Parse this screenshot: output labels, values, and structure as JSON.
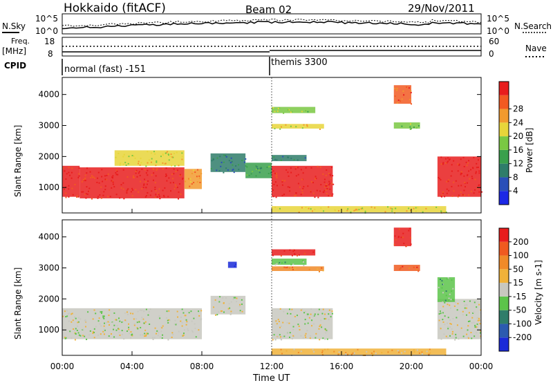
{
  "header": {
    "station": "Hokkaido (fitACF)",
    "beam": "Beam 02",
    "date": "29/Nov/2011"
  },
  "left_labels": {
    "nsky": "N.Sky",
    "freq": "Freq.",
    "freq_unit": "[MHz]",
    "cpid": "CPID"
  },
  "right_labels": {
    "nsearch": "N.Search",
    "nave": "Nave"
  },
  "noise_axis": {
    "top": "10^5",
    "bottom": "10^0"
  },
  "freq_axis": {
    "left_top": "18",
    "left_bottom": "8",
    "right_top": "60",
    "right_bottom": "0"
  },
  "cpid_labels": [
    "normal (fast) -151",
    "themis 3300"
  ],
  "range_axis": {
    "label": "Slant Range [km]",
    "ticks": [
      "1000",
      "2000",
      "3000",
      "4000"
    ],
    "ticks_values": [
      1000,
      2000,
      3000,
      4000
    ],
    "range": [
      180,
      4550
    ]
  },
  "time_axis": {
    "label": "Time UT",
    "ticks": [
      "00:00",
      "04:00",
      "08:00",
      "12:00",
      "16:00",
      "20:00",
      "00:00"
    ],
    "ticks_values": [
      0,
      4,
      8,
      12,
      16,
      20,
      24
    ]
  },
  "power_scale": {
    "label": "Power [dB]",
    "ticks": [
      "4",
      "8",
      "12",
      "16",
      "20",
      "24",
      "28"
    ],
    "colors": [
      "#1c28e6",
      "#2a4fb8",
      "#2f7d6a",
      "#3aa04c",
      "#7ac843",
      "#e8d53a",
      "#f29a2e",
      "#f25a22",
      "#e81d1d"
    ]
  },
  "velocity_scale": {
    "label": "Velocity [m s-1]",
    "ticks": [
      "200",
      "100",
      "50",
      "15",
      "-15",
      "-50",
      "-100",
      "-200"
    ],
    "colors": [
      "#1a2ad8",
      "#2c5bb0",
      "#2f7d6a",
      "#5cc44a",
      "#c8c8c0",
      "#f0b23a",
      "#f08a28",
      "#f05a20",
      "#e81d1d"
    ]
  },
  "chart_data": {
    "type": "heatmap",
    "x_range": [
      0,
      24
    ],
    "y_range": [
      180,
      4550
    ],
    "power_regions": [
      {
        "t": [
          0.0,
          1.0
        ],
        "r": [
          700,
          1700
        ],
        "level": 8
      },
      {
        "t": [
          1.0,
          7.0
        ],
        "r": [
          650,
          1650
        ],
        "level": 8
      },
      {
        "t": [
          3.0,
          7.0
        ],
        "r": [
          1700,
          2200
        ],
        "level": 5
      },
      {
        "t": [
          7.0,
          8.0
        ],
        "r": [
          950,
          1600
        ],
        "level": 6
      },
      {
        "t": [
          8.5,
          10.5
        ],
        "r": [
          1500,
          2100
        ],
        "level": 2
      },
      {
        "t": [
          10.5,
          12.0
        ],
        "r": [
          1300,
          1800
        ],
        "level": 3
      },
      {
        "t": [
          12.0,
          15.5
        ],
        "r": [
          700,
          1700
        ],
        "level": 8
      },
      {
        "t": [
          12.0,
          14.0
        ],
        "r": [
          1850,
          2050
        ],
        "level": 2
      },
      {
        "t": [
          12.0,
          15.0
        ],
        "r": [
          2900,
          3050
        ],
        "level": 5
      },
      {
        "t": [
          12.0,
          14.5
        ],
        "r": [
          3400,
          3600
        ],
        "level": 4
      },
      {
        "t": [
          19.0,
          20.0
        ],
        "r": [
          3700,
          4300
        ],
        "level": 7
      },
      {
        "t": [
          19.0,
          20.5
        ],
        "r": [
          2900,
          3100
        ],
        "level": 4
      },
      {
        "t": [
          21.5,
          24.0
        ],
        "r": [
          700,
          2000
        ],
        "level": 8
      },
      {
        "t": [
          12.0,
          22.0
        ],
        "r": [
          200,
          400
        ],
        "level": 5
      }
    ],
    "velocity_regions": [
      {
        "t": [
          0.0,
          8.0
        ],
        "r": [
          700,
          1700
        ],
        "level": 4
      },
      {
        "t": [
          8.5,
          10.5
        ],
        "r": [
          1500,
          2100
        ],
        "level": 4
      },
      {
        "t": [
          12.0,
          15.5
        ],
        "r": [
          700,
          1700
        ],
        "level": 4
      },
      {
        "t": [
          21.5,
          24.0
        ],
        "r": [
          700,
          2000
        ],
        "level": 4
      },
      {
        "t": [
          21.5,
          22.5
        ],
        "r": [
          1900,
          2700
        ],
        "level": 3
      },
      {
        "t": [
          12.0,
          14.0
        ],
        "r": [
          3100,
          3300
        ],
        "level": 3
      },
      {
        "t": [
          12.0,
          15.0
        ],
        "r": [
          2900,
          3050
        ],
        "level": 6
      },
      {
        "t": [
          12.0,
          14.5
        ],
        "r": [
          3400,
          3600
        ],
        "level": 8
      },
      {
        "t": [
          19.0,
          20.0
        ],
        "r": [
          3700,
          4300
        ],
        "level": 8
      },
      {
        "t": [
          19.0,
          20.5
        ],
        "r": [
          2900,
          3100
        ],
        "level": 7
      },
      {
        "t": [
          9.5,
          10.0
        ],
        "r": [
          3000,
          3200
        ],
        "level": 0
      },
      {
        "t": [
          12.0,
          22.0
        ],
        "r": [
          200,
          400
        ],
        "level": 5
      }
    ],
    "cpid_changes": [
      {
        "time": 0.0,
        "cpid": -151,
        "name": "normal (fast)"
      },
      {
        "time": 12.0,
        "cpid": 3300,
        "name": "themis"
      }
    ]
  }
}
